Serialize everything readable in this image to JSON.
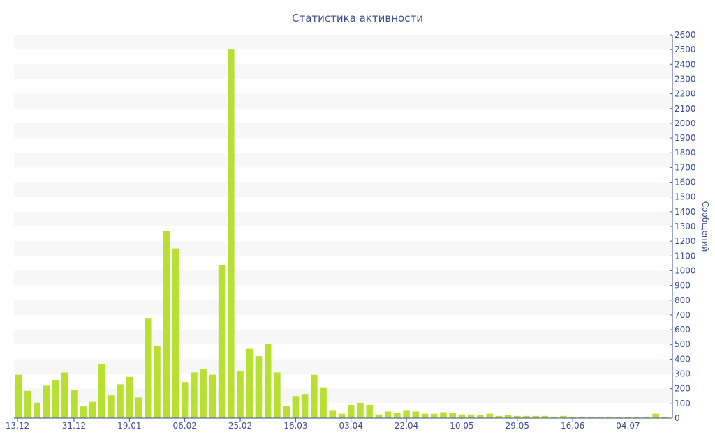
{
  "chart_data": {
    "type": "bar",
    "title": "Статистика активности",
    "ylabel": "Сообщений",
    "xlabel": "",
    "ylim": [
      0,
      2600
    ],
    "y_ticks": [
      0,
      100,
      200,
      300,
      400,
      500,
      600,
      700,
      800,
      900,
      1000,
      1100,
      1200,
      1300,
      1400,
      1500,
      1600,
      1700,
      1800,
      1900,
      2000,
      2100,
      2200,
      2300,
      2400,
      2500,
      2600
    ],
    "x_tick_labels": [
      {
        "label": "13.12",
        "bar_index": 0
      },
      {
        "label": "31.12",
        "bar_index": 6
      },
      {
        "label": "19.01",
        "bar_index": 12
      },
      {
        "label": "06.02",
        "bar_index": 18
      },
      {
        "label": "25.02",
        "bar_index": 24
      },
      {
        "label": "16.03",
        "bar_index": 30
      },
      {
        "label": "03.04",
        "bar_index": 36
      },
      {
        "label": "22.04",
        "bar_index": 42
      },
      {
        "label": "10.05",
        "bar_index": 48
      },
      {
        "label": "29.05",
        "bar_index": 54
      },
      {
        "label": "16.06",
        "bar_index": 60
      },
      {
        "label": "04.07",
        "bar_index": 66
      }
    ],
    "values": [
      295,
      185,
      105,
      220,
      255,
      310,
      190,
      80,
      110,
      365,
      155,
      230,
      280,
      140,
      675,
      490,
      1270,
      1150,
      245,
      310,
      335,
      295,
      1040,
      2500,
      320,
      470,
      420,
      505,
      310,
      85,
      150,
      160,
      295,
      205,
      50,
      30,
      90,
      100,
      90,
      25,
      45,
      35,
      50,
      45,
      30,
      30,
      40,
      35,
      25,
      25,
      20,
      30,
      15,
      20,
      15,
      15,
      15,
      15,
      10,
      15,
      10,
      10,
      5,
      5,
      10,
      5,
      5,
      5,
      10,
      30,
      10
    ],
    "bar_color": "#b8e032",
    "grid_band_color": "#f7f7f7",
    "grid": true,
    "y_axis_side": "right"
  }
}
